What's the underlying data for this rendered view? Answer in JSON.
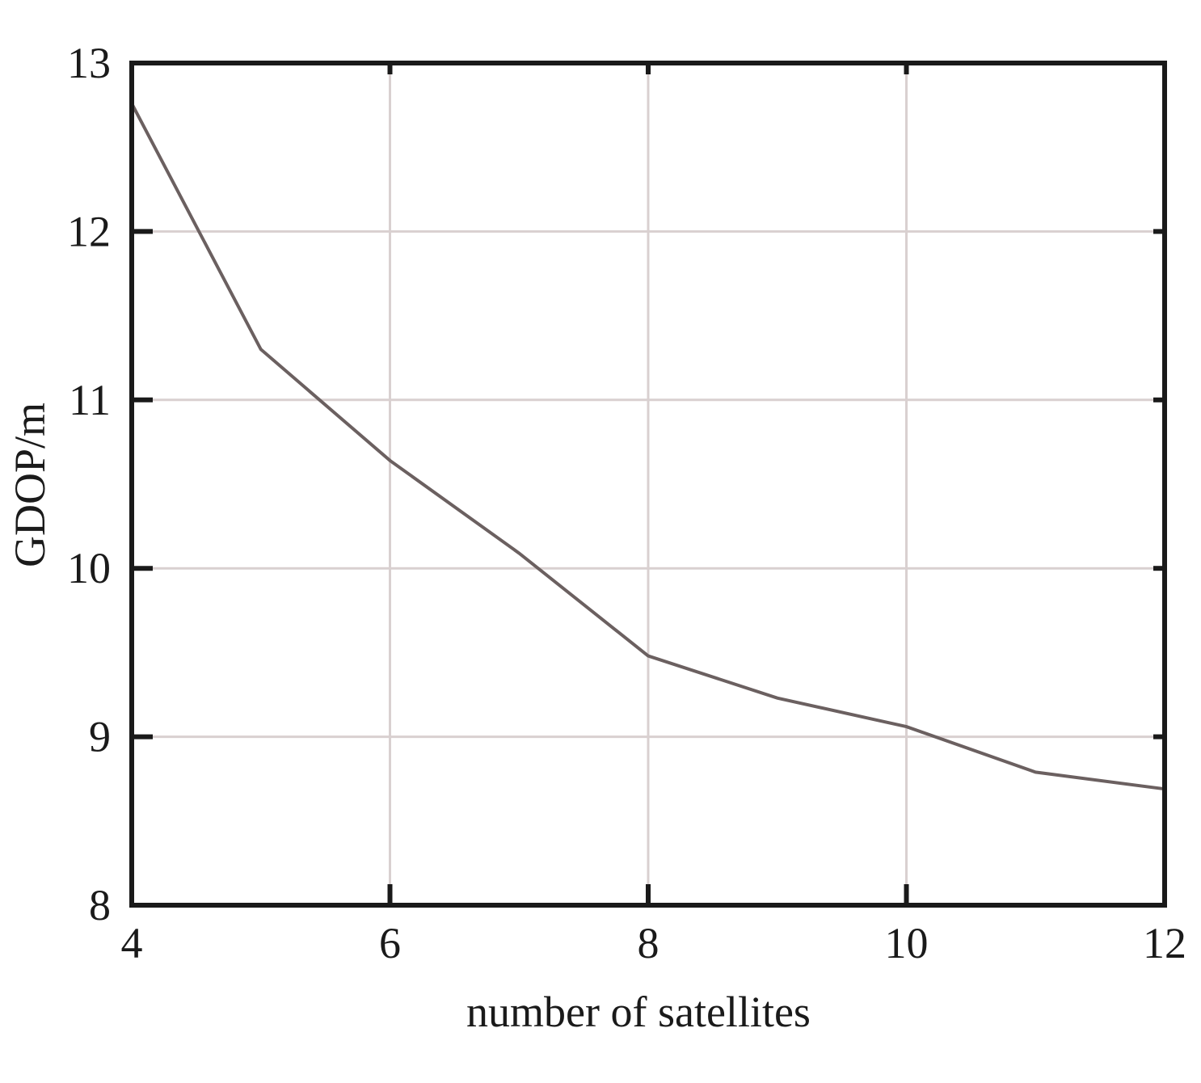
{
  "chart_data": {
    "type": "line",
    "x_label": "number of satellites",
    "y_label": "GDOP/m",
    "x": [
      4,
      5,
      6,
      7,
      8,
      9,
      10,
      11,
      12
    ],
    "series": [
      {
        "name": "GDOP",
        "color": "#6b6060",
        "values": [
          12.76,
          11.3,
          10.64,
          10.09,
          9.48,
          9.23,
          9.06,
          8.79,
          8.69
        ]
      }
    ],
    "xlim": [
      4,
      12
    ],
    "xticks": [
      4,
      6,
      8,
      10,
      12
    ],
    "ylim": [
      8,
      13
    ],
    "yticks": [
      8,
      9,
      10,
      11,
      12,
      13
    ],
    "grid": true
  }
}
